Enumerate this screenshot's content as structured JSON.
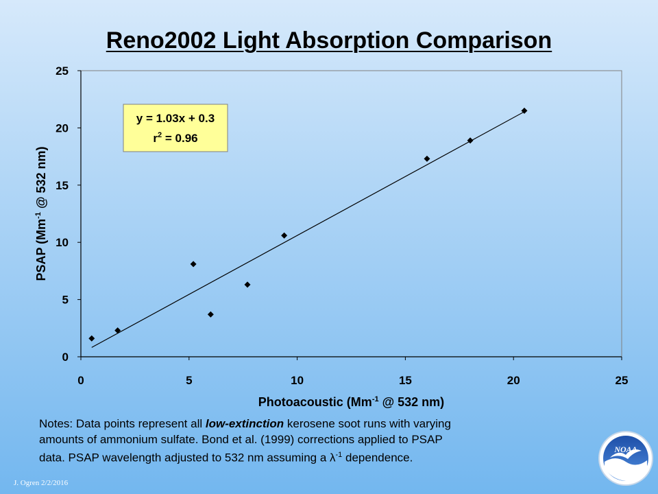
{
  "slide": {
    "title": "Reno2002 Light Absorption Comparison",
    "footer": "J. Ogren  2/2/2016",
    "logo_text": "NOAA",
    "notes": {
      "line1_a": "Notes:  Data points represent all ",
      "line1_em": "low-extinction",
      "line1_b": " kerosene soot runs with varying",
      "line2": "amounts of ammonium  sulfate.  Bond et al. (1999) corrections applied to PSAP",
      "line3_a": "data.  PSAP wavelength adjusted to 532 nm assuming a ",
      "line3_lambda": "λ",
      "line3_sup": "-1",
      "line3_b": " dependence."
    }
  },
  "chart_data": {
    "type": "scatter",
    "title": "Reno2002 Light Absorption Comparison",
    "xlabel": {
      "a": "Photoacoustic (Mm",
      "sup": "-1",
      "b": " @ 532 nm)"
    },
    "ylabel": {
      "a": "PSAP (Mm",
      "sup": "-1",
      "b": " @ 532 nm)"
    },
    "xlim": [
      0,
      25
    ],
    "ylim": [
      0,
      25
    ],
    "xticks": [
      0,
      5,
      10,
      15,
      20,
      25
    ],
    "yticks": [
      0,
      5,
      10,
      15,
      20,
      25
    ],
    "grid": false,
    "series": [
      {
        "x": [
          0.5,
          1.7,
          5.2,
          6.0,
          7.7,
          9.4,
          16.0,
          18.0,
          20.5
        ],
        "y": [
          1.6,
          2.3,
          8.1,
          3.7,
          6.3,
          10.6,
          17.3,
          18.9,
          21.5
        ],
        "marker": "diamond",
        "color": "#000000"
      }
    ],
    "trendline": {
      "slope": 1.03,
      "intercept": 0.3,
      "x_range": [
        0.5,
        20.5
      ]
    },
    "annotation": {
      "equation": "y = 1.03x + 0.3",
      "r2_a": "r",
      "r2_sup": "2",
      "r2_b": " = 0.96",
      "background": "#ffff99"
    }
  }
}
